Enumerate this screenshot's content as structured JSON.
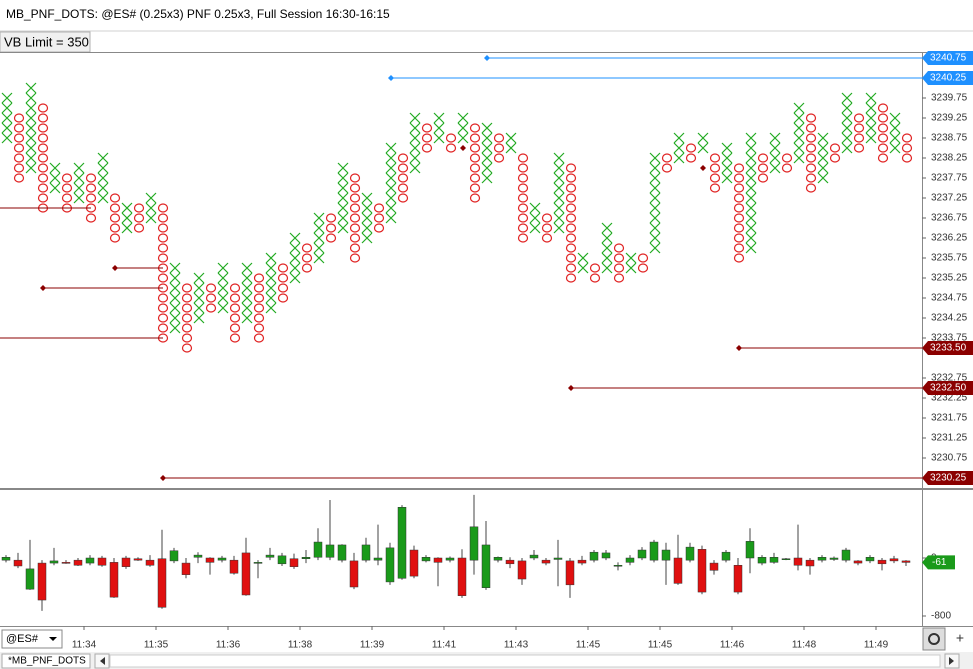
{
  "window": {
    "title": "MB_PNF_DOTS: @ES# (0.25x3) PNF 0.25x3, Full Session 16:30-16:15",
    "vb_limit": "VB Limit = 350",
    "symbol": "@ES#",
    "tab": "*MB_PNF_DOTS"
  },
  "chart_data": [
    {
      "type": "pnf",
      "box_size": 0.25,
      "x_color": "#22aa22",
      "o_color": "#e02020",
      "kind": [
        "X",
        "O",
        "X",
        "O",
        "X",
        "O",
        "X",
        "O",
        "X",
        "O",
        "X",
        "O",
        "X",
        "O",
        "X",
        "O",
        "X",
        "O",
        "X",
        "O",
        "X",
        "O",
        "X",
        "O",
        "X",
        "O",
        "X",
        "O",
        "X",
        "O",
        "X",
        "O",
        "X",
        "O",
        "X",
        "O",
        "X",
        "O",
        "X",
        "O",
        "X",
        "O",
        "X",
        "O",
        "X",
        "O",
        "X",
        "O",
        "X",
        "O",
        "X",
        "O",
        "X",
        "O",
        "X",
        "O",
        "X",
        "O",
        "X",
        "O",
        "X",
        "O",
        "X",
        "O",
        "X",
        "O",
        "X",
        "O",
        "X",
        "O",
        "X",
        "O",
        "X",
        "O",
        "X",
        "O"
      ],
      "low": [
        3238.75,
        3237.75,
        3238.0,
        3237.0,
        3237.5,
        3237.0,
        3237.25,
        3236.75,
        3237.25,
        3236.25,
        3236.5,
        3236.5,
        3236.75,
        3233.75,
        3234.0,
        3233.5,
        3234.25,
        3234.5,
        3234.5,
        3233.75,
        3234.25,
        3233.75,
        3234.5,
        3234.75,
        3235.25,
        3235.5,
        3235.75,
        3236.25,
        3236.5,
        3235.75,
        3236.25,
        3236.5,
        3236.75,
        3237.25,
        3238.0,
        3238.5,
        3238.75,
        3238.5,
        3238.75,
        3237.25,
        3237.75,
        3238.25,
        3238.5,
        3236.25,
        3236.5,
        3236.25,
        3236.5,
        3235.25,
        3235.5,
        3235.25,
        3235.5,
        3235.25,
        3235.5,
        3235.5,
        3236.0,
        3238.0,
        3238.25,
        3238.25,
        3238.5,
        3237.5,
        3237.75,
        3235.75,
        3236.0,
        3237.75,
        3238.0,
        3238.0,
        3238.25,
        3237.5,
        3237.75,
        3238.25,
        3238.5,
        3238.5,
        3238.75,
        3238.25,
        3238.5,
        3238.25
      ],
      "high": [
        3239.75,
        3239.25,
        3240.0,
        3239.5,
        3238.0,
        3237.75,
        3238.0,
        3237.75,
        3238.25,
        3237.25,
        3237.0,
        3237.0,
        3237.25,
        3237.0,
        3235.5,
        3235.0,
        3235.25,
        3235.0,
        3235.5,
        3235.0,
        3235.5,
        3235.25,
        3235.75,
        3235.5,
        3236.25,
        3236.0,
        3236.75,
        3236.75,
        3238.0,
        3237.75,
        3237.25,
        3237.0,
        3238.5,
        3238.25,
        3239.25,
        3239.0,
        3239.25,
        3238.75,
        3239.25,
        3239.0,
        3239.0,
        3238.75,
        3238.75,
        3238.25,
        3237.0,
        3236.75,
        3238.25,
        3238.0,
        3235.75,
        3235.5,
        3236.5,
        3236.0,
        3235.75,
        3235.75,
        3238.25,
        3238.25,
        3238.75,
        3238.5,
        3238.75,
        3238.25,
        3238.5,
        3238.0,
        3238.75,
        3238.25,
        3238.75,
        3238.25,
        3239.5,
        3239.25,
        3238.75,
        3238.5,
        3239.75,
        3239.25,
        3239.75,
        3239.5,
        3239.25,
        3238.75
      ],
      "ylim": [
        3230.0,
        3240.9
      ],
      "yticks": [
        3230.75,
        3231.25,
        3231.75,
        3232.25,
        3232.75,
        3233.75,
        3234.25,
        3234.75,
        3235.25,
        3235.75,
        3236.25,
        3236.75,
        3237.25,
        3237.75,
        3238.25,
        3238.75,
        3239.25,
        3239.75
      ],
      "levels": [
        {
          "value": 3237.0,
          "end": 7,
          "color": "#8b0000"
        },
        {
          "value": 3235.5,
          "start": 9,
          "end": 13,
          "color": "#8b0000"
        },
        {
          "value": 3235.0,
          "start": 3,
          "end": 13,
          "color": "#8b0000"
        },
        {
          "value": 3233.75,
          "end": 13,
          "color": "#8b0000"
        },
        {
          "value": 3233.5,
          "start": 61,
          "color": "#8b0000",
          "label": "3233.50"
        },
        {
          "value": 3232.5,
          "start": 47,
          "color": "#8b0000",
          "label": "3232.50"
        },
        {
          "value": 3230.25,
          "start": 13,
          "color": "#8b0000",
          "label": "3230.25"
        },
        {
          "value": 3240.75,
          "start": 40,
          "color": "#1e90ff",
          "label": "3240.75"
        },
        {
          "value": 3240.25,
          "start": 32,
          "color": "#1e90ff",
          "label": "3240.25"
        },
        {
          "value": 3238.5,
          "start": 38,
          "end": 38,
          "color": "#8b0000"
        },
        {
          "value": 3238.0,
          "start": 58,
          "end": 58,
          "color": "#8b0000"
        }
      ]
    },
    {
      "type": "candlestick",
      "up_color": "#1a9a1a",
      "down_color": "#e01010",
      "categories": [
        null,
        null,
        null,
        null,
        null,
        null,
        "11:34",
        null,
        null,
        null,
        null,
        null,
        "11:35",
        null,
        null,
        null,
        null,
        null,
        "11:36",
        null,
        null,
        null,
        null,
        null,
        "11:38",
        null,
        null,
        null,
        null,
        null,
        "11:39",
        null,
        null,
        null,
        null,
        null,
        "11:41",
        null,
        null,
        null,
        null,
        null,
        "11:43",
        null,
        null,
        null,
        null,
        null,
        "11:45",
        null,
        null,
        null,
        null,
        null,
        "11:45",
        null,
        null,
        null,
        null,
        null,
        "11:46",
        null,
        null,
        null,
        null,
        null,
        "11:48",
        null,
        null,
        null,
        null,
        null,
        "11:49",
        null,
        null,
        null
      ],
      "open": [
        -30,
        -30,
        -430,
        -70,
        -70,
        -60,
        -30,
        -70,
        0,
        -60,
        0,
        -10,
        -30,
        -10,
        -40,
        -70,
        10,
        0,
        -30,
        -30,
        70,
        -70,
        10,
        -80,
        -10,
        -10,
        10,
        10,
        -30,
        -40,
        -30,
        -30,
        -330,
        -280,
        110,
        -40,
        0,
        -30,
        0,
        -30,
        -410,
        -30,
        -30,
        -40,
        0,
        -30,
        -20,
        -40,
        -30,
        -30,
        0,
        -110,
        -60,
        0,
        -30,
        -30,
        0,
        -30,
        120,
        -70,
        -30,
        -100,
        0,
        -70,
        -60,
        -20,
        0,
        -30,
        -30,
        -20,
        -30,
        -40,
        -40,
        -30,
        -10,
        -40
      ],
      "high": [
        40,
        70,
        250,
        -30,
        140,
        -30,
        0,
        40,
        30,
        0,
        30,
        10,
        40,
        390,
        140,
        0,
        80,
        10,
        30,
        30,
        280,
        -30,
        140,
        70,
        60,
        110,
        410,
        800,
        190,
        70,
        280,
        460,
        210,
        730,
        170,
        40,
        10,
        20,
        120,
        870,
        510,
        20,
        10,
        0,
        110,
        0,
        250,
        0,
        30,
        110,
        110,
        -60,
        40,
        150,
        250,
        210,
        320,
        210,
        170,
        -30,
        110,
        0,
        410,
        40,
        70,
        0,
        460,
        0,
        40,
        20,
        140,
        -30,
        40,
        0,
        30,
        -30
      ],
      "low": [
        -60,
        -140,
        -440,
        -730,
        -100,
        -80,
        -110,
        -100,
        -120,
        -550,
        -150,
        -40,
        -120,
        -700,
        -70,
        -280,
        -70,
        -230,
        -60,
        -230,
        -520,
        -280,
        -30,
        -110,
        -150,
        -70,
        -30,
        -30,
        -60,
        -430,
        -60,
        -100,
        -370,
        -300,
        -280,
        -60,
        -390,
        -60,
        -550,
        -230,
        -440,
        -60,
        -140,
        -370,
        -30,
        -100,
        -390,
        -550,
        -100,
        -60,
        -30,
        -170,
        -100,
        -30,
        -60,
        -370,
        -370,
        -60,
        -500,
        -230,
        -60,
        -500,
        -210,
        -100,
        -80,
        -30,
        -170,
        -230,
        -60,
        -40,
        -60,
        -100,
        -70,
        -170,
        -70,
        -110
      ],
      "close": [
        10,
        -110,
        -150,
        -580,
        -40,
        -70,
        -100,
        0,
        -100,
        -540,
        -120,
        -30,
        -100,
        -680,
        100,
        -230,
        40,
        -60,
        0,
        -210,
        -510,
        -60,
        40,
        30,
        -120,
        10,
        220,
        180,
        180,
        -400,
        180,
        0,
        140,
        700,
        -250,
        10,
        -60,
        0,
        -520,
        430,
        180,
        10,
        -80,
        -290,
        40,
        -70,
        0,
        -370,
        -70,
        80,
        70,
        -100,
        0,
        110,
        220,
        110,
        -350,
        150,
        -470,
        -170,
        80,
        -470,
        230,
        10,
        10,
        -10,
        -100,
        -110,
        10,
        0,
        110,
        -70,
        10,
        -80,
        -40,
        -61
      ],
      "ylim": [
        -938,
        938
      ],
      "yticks": [
        0,
        -800
      ]
    }
  ]
}
